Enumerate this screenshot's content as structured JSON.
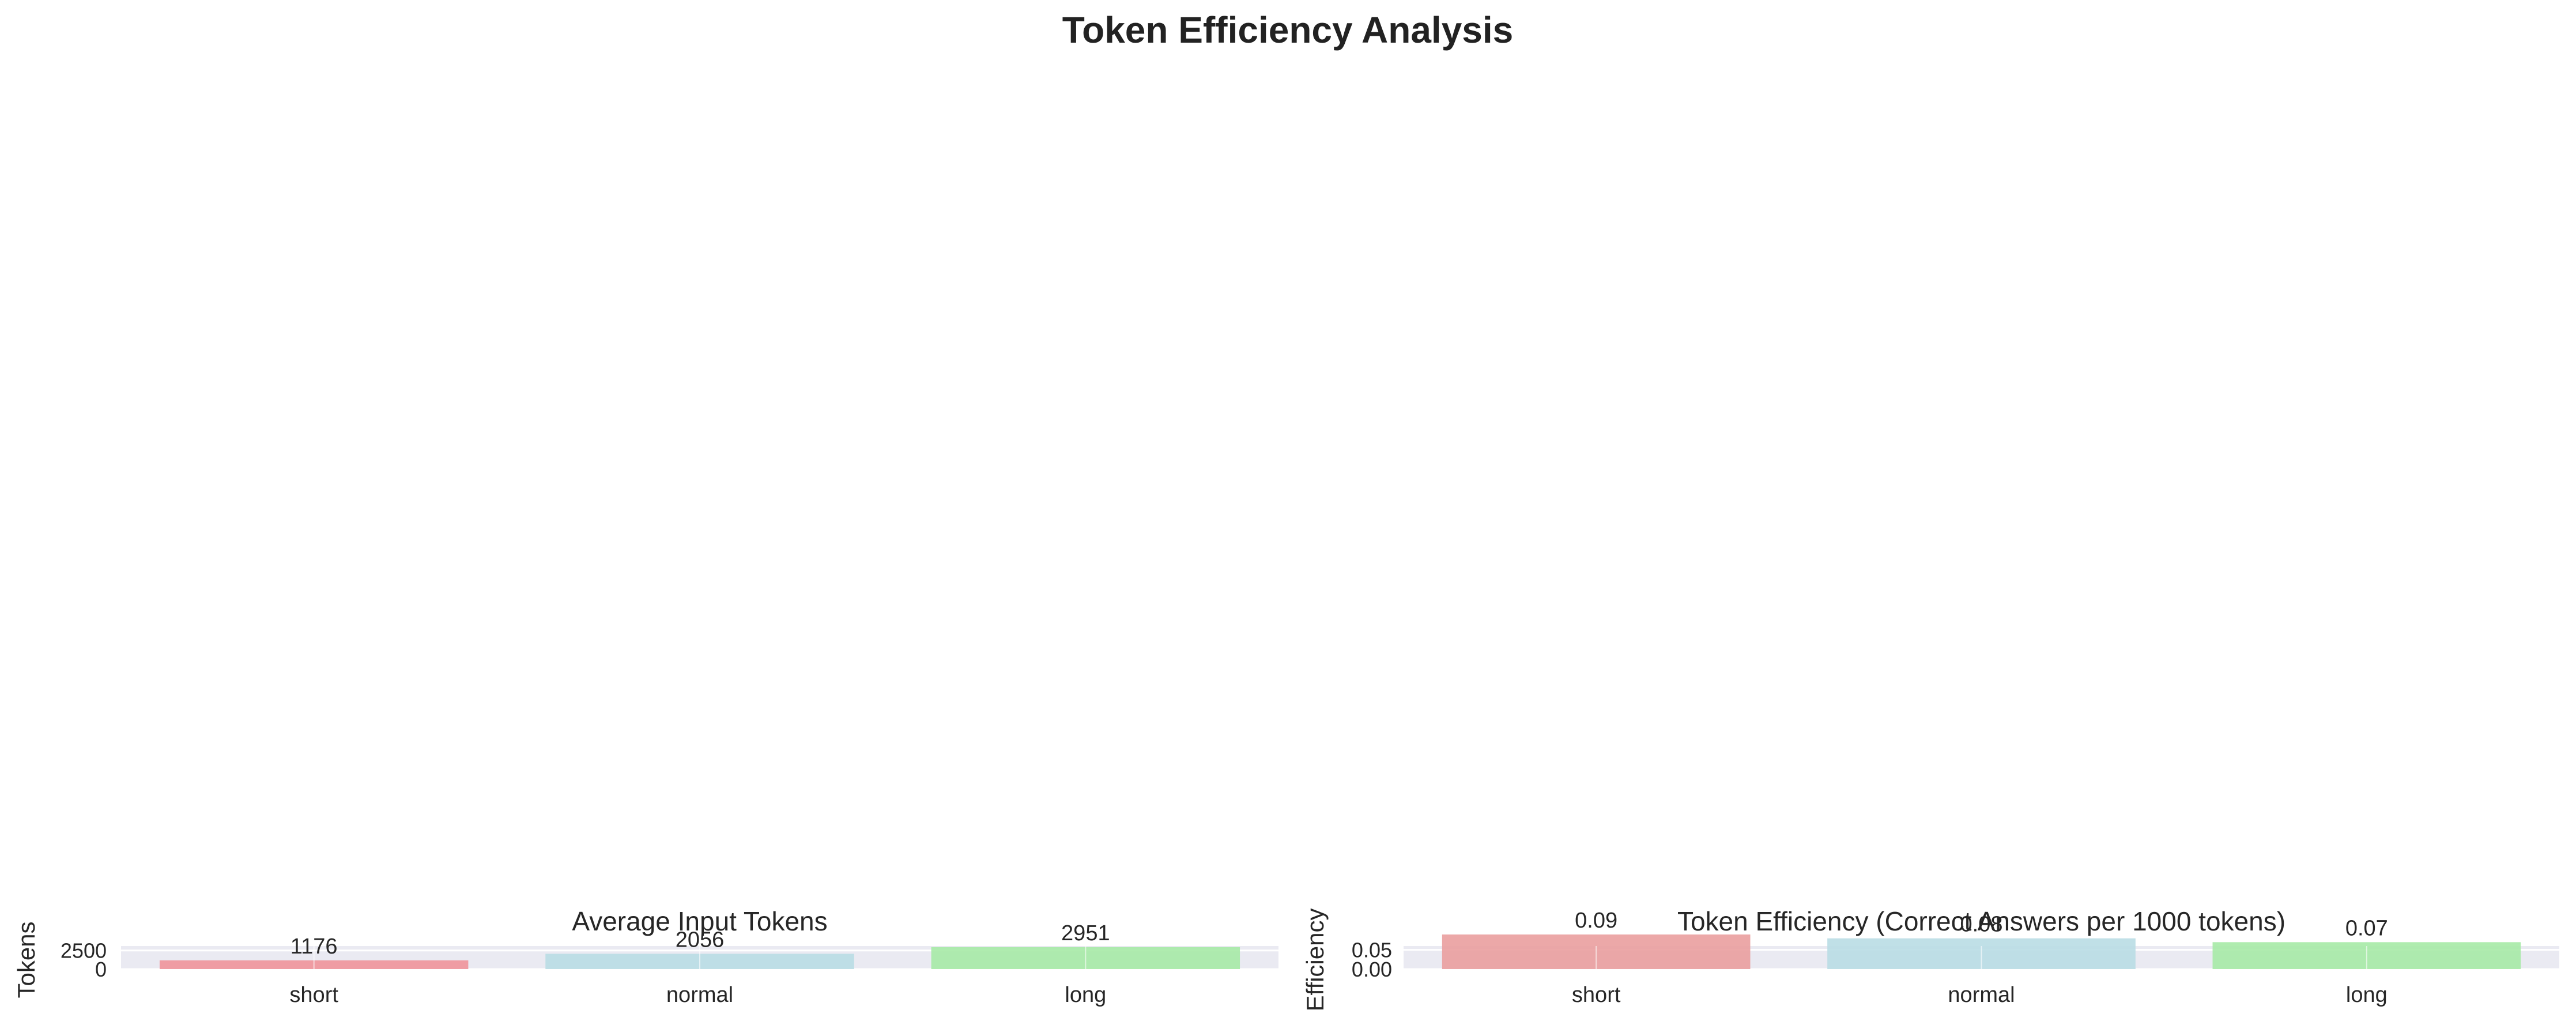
{
  "figure": {
    "title": "Token Efficiency Analysis"
  },
  "chart_data": [
    {
      "type": "bar",
      "title": "Average Input Tokens",
      "xlabel": "",
      "ylabel": "Tokens",
      "categories": [
        "short",
        "normal",
        "long"
      ],
      "values": [
        1176,
        2056,
        2951
      ],
      "data_labels": [
        "1176",
        "2056",
        "2951"
      ],
      "colors": [
        "#f0949a",
        "#b9dde4",
        "#a6eaa6"
      ],
      "yticks": [
        "0",
        "2500"
      ],
      "ytick_values": [
        0,
        2500
      ],
      "ylim": [
        0,
        3100
      ],
      "grid": true,
      "background": "#eaeaf2"
    },
    {
      "type": "bar",
      "title": "Token Efficiency (Correct Answers per 1000 tokens)",
      "xlabel": "",
      "ylabel": "Efficiency",
      "categories": [
        "short",
        "normal",
        "long"
      ],
      "values": [
        0.09,
        0.08,
        0.07
      ],
      "data_labels": [
        "0.09",
        "0.08",
        "0.07"
      ],
      "colors": [
        "#ea9f9f",
        "#b9dde4",
        "#a6eaa6"
      ],
      "yticks": [
        "0.00",
        "0.05"
      ],
      "ytick_values": [
        0,
        0.05
      ],
      "ylim": [
        0,
        0.06
      ],
      "grid": true,
      "background": "#eaeaf2"
    }
  ]
}
